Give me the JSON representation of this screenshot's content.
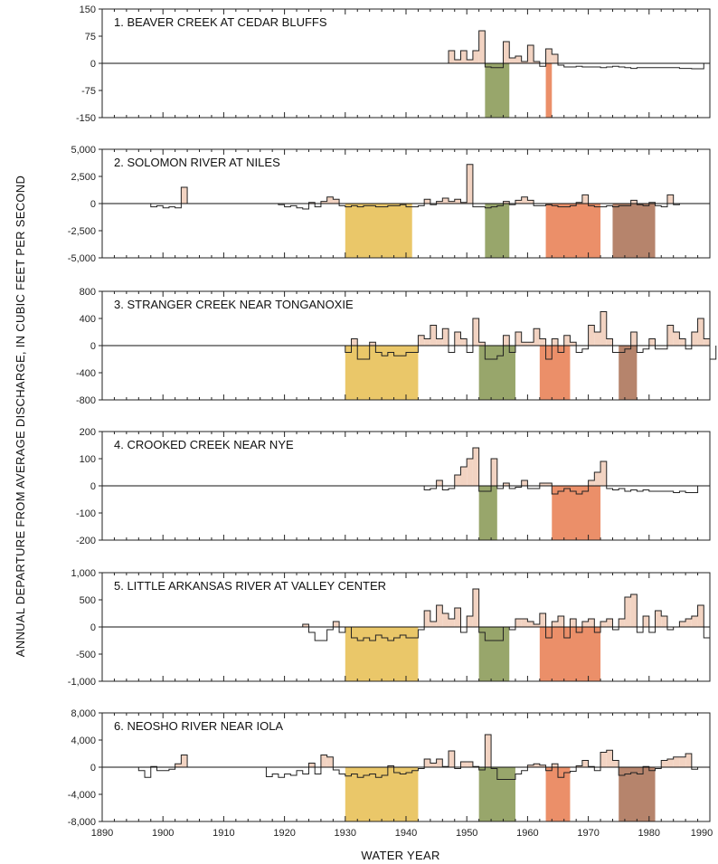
{
  "figure": {
    "ylabel": "ANNUAL DEPARTURE FROM AVERAGE DISCHARGE, IN CUBIC FEET PER SECOND",
    "xlabel": "WATER YEAR",
    "x_ticks": [
      "1890",
      "1900",
      "1910",
      "1920",
      "1930",
      "1940",
      "1950",
      "1960",
      "1970",
      "1980",
      "1990"
    ]
  },
  "colors": {
    "positive_fill": "#f2d3c2",
    "line": "#222222",
    "drought_1930s": "#e8c25c",
    "drought_1950s": "#8f9e5e",
    "drought_1960s": "#e9865c",
    "drought_1970s": "#b07a60"
  },
  "chart_data": [
    {
      "type": "area",
      "title": "1.  BEAVER CREEK AT CEDAR BLUFFS",
      "xlim": [
        1890,
        1990
      ],
      "ylim": [
        -150,
        150
      ],
      "y_ticks": [
        "150",
        "75",
        "0",
        "-75",
        "-150"
      ],
      "y_tick_values": [
        150,
        75,
        0,
        -75,
        -150
      ],
      "grid": false,
      "start_year": 1947,
      "values": [
        35,
        10,
        35,
        10,
        35,
        90,
        -10,
        -12,
        -12,
        60,
        15,
        20,
        5,
        50,
        5,
        -8,
        40,
        25,
        -5,
        -10,
        -10,
        -8,
        -10,
        -10,
        -10,
        -12,
        -10,
        -8,
        -10,
        -12,
        -14,
        -12,
        -12,
        -12,
        -12,
        -12,
        -12,
        -12,
        -14,
        -14,
        -15,
        -15
      ],
      "drought_periods": [
        {
          "start": 1953,
          "end": 1957,
          "color": "drought_1950s"
        },
        {
          "start": 1963,
          "end": 1964,
          "color": "drought_1960s"
        }
      ]
    },
    {
      "type": "area",
      "title": "2.  SOLOMON RIVER AT NILES",
      "xlim": [
        1890,
        1990
      ],
      "ylim": [
        -5000,
        5000
      ],
      "y_ticks": [
        "5,000",
        "2,500",
        "0",
        "-2,500",
        "-5,000"
      ],
      "y_tick_values": [
        5000,
        2500,
        0,
        -2500,
        -5000
      ],
      "grid": false,
      "segments": [
        {
          "start_year": 1898,
          "values": [
            -300,
            -200,
            -400,
            -300,
            -400,
            1500
          ]
        },
        {
          "start_year": 1919,
          "values": [
            -100,
            -300,
            -200,
            -400,
            -500,
            100,
            -300,
            200,
            600,
            400,
            -200,
            -300,
            -200,
            -300,
            -200,
            -200,
            -300,
            -300,
            -200,
            -200,
            -100,
            -300,
            -300,
            -200,
            400,
            -100,
            200,
            500,
            200,
            400,
            100,
            3600,
            -300,
            -300,
            -400,
            -300,
            -200,
            200,
            -100,
            300,
            600,
            300,
            -200,
            -200,
            -100,
            -200,
            -300,
            -300,
            -200,
            100,
            800,
            -200,
            -300,
            -300,
            -200,
            -300,
            -200,
            -200,
            300,
            -100,
            -200,
            100,
            -200,
            -300,
            800,
            -100
          ]
        }
      ],
      "drought_periods": [
        {
          "start": 1930,
          "end": 1941,
          "color": "drought_1930s"
        },
        {
          "start": 1953,
          "end": 1957,
          "color": "drought_1950s"
        },
        {
          "start": 1963,
          "end": 1972,
          "color": "drought_1960s"
        },
        {
          "start": 1974,
          "end": 1981,
          "color": "drought_1970s"
        }
      ]
    },
    {
      "type": "area",
      "title": "3.  STRANGER CREEK NEAR TONGANOXIE",
      "xlim": [
        1890,
        1990
      ],
      "ylim": [
        -800,
        800
      ],
      "y_ticks": [
        "800",
        "400",
        "0",
        "-400",
        "-800"
      ],
      "y_tick_values": [
        800,
        400,
        0,
        -400,
        -800
      ],
      "grid": false,
      "start_year": 1930,
      "values": [
        -100,
        100,
        -200,
        -200,
        50,
        -100,
        -150,
        -100,
        -150,
        -150,
        -100,
        -100,
        150,
        100,
        300,
        100,
        250,
        -100,
        200,
        100,
        -100,
        400,
        50,
        -200,
        -200,
        -150,
        150,
        -100,
        200,
        50,
        50,
        250,
        100,
        -200,
        100,
        -100,
        150,
        50,
        -100,
        -50,
        300,
        200,
        500,
        100,
        -100,
        -100,
        -50,
        200,
        -100,
        -50,
        100,
        -50,
        -50,
        300,
        200,
        100,
        -50,
        200,
        400,
        100,
        -200
      ],
      "drought_periods": [
        {
          "start": 1930,
          "end": 1942,
          "color": "drought_1930s"
        },
        {
          "start": 1952,
          "end": 1958,
          "color": "drought_1950s"
        },
        {
          "start": 1962,
          "end": 1967,
          "color": "drought_1960s"
        },
        {
          "start": 1975,
          "end": 1978,
          "color": "drought_1970s"
        }
      ]
    },
    {
      "type": "area",
      "title": "4.  CROOKED CREEK NEAR NYE",
      "xlim": [
        1890,
        1990
      ],
      "ylim": [
        -200,
        200
      ],
      "y_ticks": [
        "200",
        "100",
        "0",
        "-100",
        "-200"
      ],
      "y_tick_values": [
        200,
        100,
        0,
        -100,
        -200
      ],
      "grid": false,
      "start_year": 1943,
      "values": [
        -15,
        -10,
        20,
        -15,
        -10,
        40,
        70,
        100,
        140,
        -20,
        -20,
        100,
        -10,
        10,
        -10,
        -5,
        20,
        -10,
        -10,
        10,
        10,
        -30,
        -20,
        -10,
        -20,
        -30,
        -20,
        20,
        50,
        90,
        -10,
        -15,
        -10,
        -20,
        -15,
        -20,
        -15,
        -20,
        -20,
        -20,
        -20,
        -25,
        -20,
        -25,
        -25
      ],
      "drought_periods": [
        {
          "start": 1952,
          "end": 1955,
          "color": "drought_1950s"
        },
        {
          "start": 1964,
          "end": 1972,
          "color": "drought_1960s"
        }
      ]
    },
    {
      "type": "area",
      "title": "5.  LITTLE ARKANSAS RIVER AT VALLEY CENTER",
      "xlim": [
        1890,
        1990
      ],
      "ylim": [
        -1000,
        1000
      ],
      "y_ticks": [
        "1,000",
        "500",
        "0",
        "-500",
        "-1,000"
      ],
      "y_tick_values": [
        1000,
        500,
        0,
        -500,
        -1000
      ],
      "grid": false,
      "start_year": 1923,
      "values": [
        50,
        -100,
        -250,
        -250,
        -50,
        100,
        -100,
        0,
        -200,
        -250,
        -200,
        -250,
        -150,
        -200,
        -250,
        -200,
        -150,
        -200,
        -200,
        -50,
        300,
        100,
        400,
        250,
        150,
        350,
        -100,
        200,
        700,
        -100,
        -250,
        -250,
        -250,
        0,
        -50,
        150,
        150,
        100,
        50,
        250,
        -200,
        100,
        200,
        -200,
        150,
        -100,
        100,
        150,
        -100,
        100,
        150,
        -50,
        150,
        550,
        600,
        -100,
        200,
        -100,
        300,
        200,
        -50,
        0,
        100,
        150,
        200,
        400,
        -200
      ],
      "drought_periods": [
        {
          "start": 1930,
          "end": 1942,
          "color": "drought_1930s"
        },
        {
          "start": 1952,
          "end": 1957,
          "color": "drought_1950s"
        },
        {
          "start": 1962,
          "end": 1972,
          "color": "drought_1960s"
        }
      ]
    },
    {
      "type": "area",
      "title": "6.  NEOSHO RIVER NEAR IOLA",
      "xlim": [
        1890,
        1990
      ],
      "ylim": [
        -8000,
        8000
      ],
      "y_ticks": [
        "8,000",
        "4,000",
        "0",
        "-4,000",
        "-8,000"
      ],
      "y_tick_values": [
        8000,
        4000,
        0,
        -4000,
        -8000
      ],
      "grid": false,
      "segments": [
        {
          "start_year": 1896,
          "values": [
            -500,
            -1500,
            100,
            -500,
            -500,
            -300,
            500,
            1800
          ]
        },
        {
          "start_year": 1917,
          "values": [
            -1400,
            -1000,
            -1500,
            -1000,
            -1200,
            -500,
            -1000,
            600,
            -1000,
            1800,
            1500,
            -400,
            -1000,
            -1300,
            -1000,
            -1500,
            -1200,
            -1000,
            -1500,
            -1200,
            200,
            -800,
            -1000,
            -800,
            -500,
            -200,
            1200,
            600,
            1200,
            100,
            2400,
            -200,
            800,
            800,
            100,
            -400,
            4800,
            -200,
            -1800,
            -1800,
            -1800,
            -1000,
            -500,
            300,
            500,
            300,
            -500,
            500,
            -1500,
            -800,
            -600,
            200,
            1000,
            100,
            -500,
            2200,
            2500,
            1000,
            -1200,
            -1000,
            -800,
            -1000,
            100,
            -500,
            -200,
            1000,
            1200,
            1500,
            1500,
            2000,
            -300
          ]
        }
      ],
      "drought_periods": [
        {
          "start": 1930,
          "end": 1942,
          "color": "drought_1930s"
        },
        {
          "start": 1952,
          "end": 1958,
          "color": "drought_1950s"
        },
        {
          "start": 1963,
          "end": 1967,
          "color": "drought_1960s"
        },
        {
          "start": 1975,
          "end": 1981,
          "color": "drought_1970s"
        }
      ]
    }
  ]
}
